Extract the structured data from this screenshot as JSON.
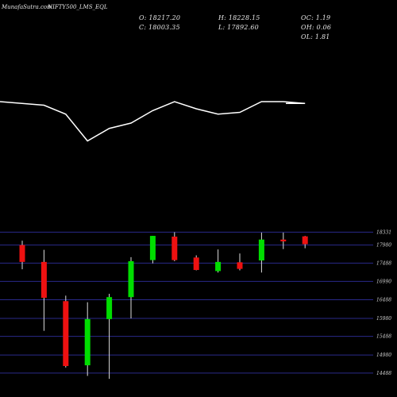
{
  "header": {
    "title": "MunafaSutra.com",
    "symbol": "NIFTY500_LMS_EQL"
  },
  "stats": {
    "open": "O: 18217.20",
    "high": "H: 18228.15",
    "oc": "OC: 1.19",
    "close": "C: 18003.35",
    "low": "L: 17892.60",
    "oh": "OH: 0.06",
    "ol": "OL: 1.81"
  },
  "colors": {
    "background": "#000000",
    "up": "#00dd00",
    "down": "#ee1111",
    "grid": "#2a2a8a",
    "line": "#ffffff"
  },
  "chart_data": [
    {
      "type": "line",
      "series": [
        {
          "values": [
            62,
            60,
            55,
            40,
            47,
            50,
            57,
            62,
            58,
            55,
            56,
            62,
            62,
            61
          ]
        }
      ]
    },
    {
      "type": "candlestick",
      "ylim": [
        13900,
        18600
      ],
      "ytick_labels": [
        "18331",
        "17980",
        "17488",
        "16990",
        "16488",
        "15980",
        "15488",
        "14980",
        "14488"
      ],
      "yticks": [
        18331,
        17980,
        17488,
        16990,
        16488,
        15980,
        15488,
        14980,
        14488
      ],
      "candles": [
        {
          "o": 17980,
          "h": 18100,
          "l": 17320,
          "c": 17520
        },
        {
          "o": 17520,
          "h": 17850,
          "l": 15640,
          "c": 16540
        },
        {
          "o": 16450,
          "h": 16600,
          "l": 14640,
          "c": 14680
        },
        {
          "o": 14700,
          "h": 16420,
          "l": 14410,
          "c": 15960
        },
        {
          "o": 15960,
          "h": 16650,
          "l": 14330,
          "c": 16560
        },
        {
          "o": 16560,
          "h": 17650,
          "l": 15980,
          "c": 17540
        },
        {
          "o": 17570,
          "h": 18230,
          "l": 17480,
          "c": 18230
        },
        {
          "o": 18210,
          "h": 18330,
          "l": 17540,
          "c": 17570
        },
        {
          "o": 17640,
          "h": 17700,
          "l": 17290,
          "c": 17300
        },
        {
          "o": 17270,
          "h": 17860,
          "l": 17230,
          "c": 17520
        },
        {
          "o": 17510,
          "h": 17750,
          "l": 17290,
          "c": 17330
        },
        {
          "o": 17560,
          "h": 18320,
          "l": 17230,
          "c": 18130
        },
        {
          "o": 18130,
          "h": 18320,
          "l": 17870,
          "c": 18080
        },
        {
          "o": 18217.2,
          "h": 18228.15,
          "l": 17892.6,
          "c": 18003.35
        }
      ]
    }
  ]
}
